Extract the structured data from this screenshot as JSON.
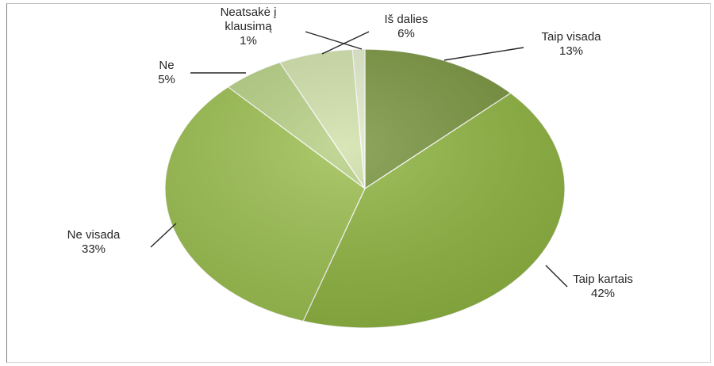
{
  "chart_data": {
    "type": "pie",
    "title": "",
    "start_angle_deg": 0,
    "direction": "clockwise",
    "slices": [
      {
        "label": "Taip visada",
        "pct_label": "13%",
        "value": 13,
        "color": "#77933c"
      },
      {
        "label": "Taip kartais",
        "pct_label": "42%",
        "value": 42,
        "color": "#8eb43f"
      },
      {
        "label": "Ne visada",
        "pct_label": "33%",
        "value": 33,
        "color": "#9bbf4e"
      },
      {
        "label": "Ne",
        "pct_label": "5%",
        "value": 5,
        "color": "#b5cf82"
      },
      {
        "label": "Iš dalies",
        "pct_label": "6%",
        "value": 6,
        "color": "#cfe0a8"
      },
      {
        "label": "Neatsakė į klausimą",
        "label_lines": [
          "Neatsakė į",
          "klausimą"
        ],
        "pct_label": "1%",
        "value": 1,
        "color": "#dfeac8"
      }
    ],
    "legend": "none"
  }
}
